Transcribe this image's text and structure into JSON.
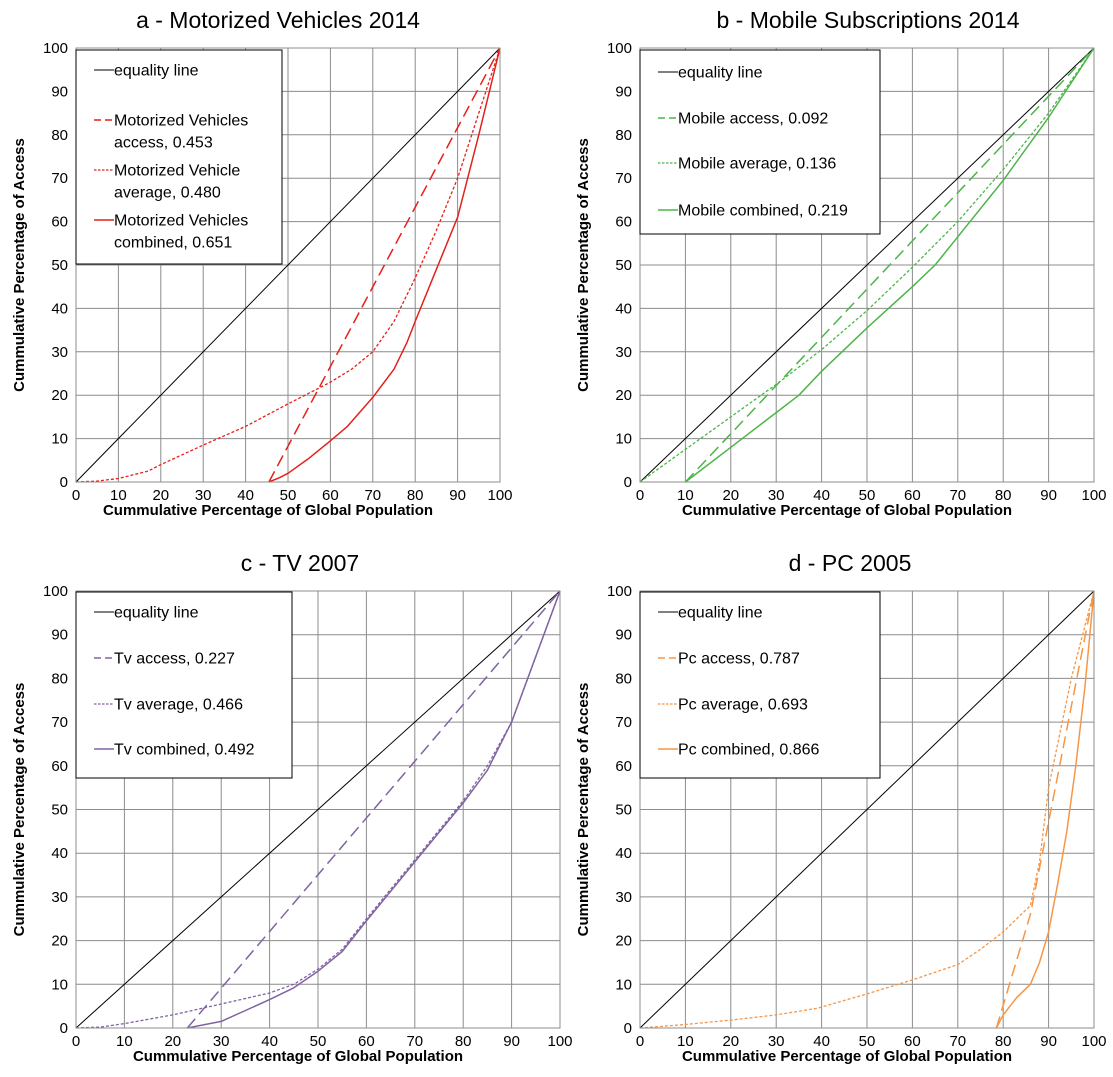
{
  "chart_data": [
    {
      "type": "line",
      "title": "a - Motorized Vehicles 2014",
      "xlabel": "Cummulative Percentage of Global Population",
      "ylabel": "Cummulative Percentage of Access",
      "xlim": [
        0,
        100
      ],
      "ylim": [
        0,
        100
      ],
      "xticks": [
        "0",
        "10",
        "20",
        "30",
        "40",
        "50",
        "60",
        "70",
        "80",
        "90",
        "100"
      ],
      "yticks": [
        "0",
        "10",
        "20",
        "30",
        "40",
        "50",
        "60",
        "70",
        "80",
        "90",
        "100"
      ],
      "grid": true,
      "legend_position": "top-left",
      "series": [
        {
          "name": "equality line",
          "color": "#000000",
          "dash": "solid",
          "x": [
            0,
            100
          ],
          "y": [
            0,
            100
          ]
        },
        {
          "name": "Motorized Vehicles access, 0.453",
          "name_lines": [
            "Motorized Vehicles",
            "access, 0.453"
          ],
          "color": "#e4211c",
          "dash": "long-dash",
          "x": [
            45.5,
            100
          ],
          "y": [
            0,
            100
          ]
        },
        {
          "name": "Motorized Vehicle average, 0.480",
          "name_lines": [
            "Motorized Vehicle",
            "average, 0.480"
          ],
          "color": "#e4211c",
          "dash": "dotted",
          "x": [
            0,
            5,
            10,
            17,
            20,
            30,
            40,
            50,
            60,
            65,
            70,
            75,
            80,
            85,
            90,
            95,
            100
          ],
          "y": [
            0,
            0.2,
            0.8,
            2.5,
            4,
            8.5,
            12.8,
            18,
            23,
            26,
            30,
            37,
            47,
            58,
            70,
            85,
            100
          ]
        },
        {
          "name": "Motorized Vehicles combined, 0.651",
          "name_lines": [
            "Motorized Vehicles",
            "combined, 0.651"
          ],
          "color": "#e4211c",
          "dash": "solid",
          "x": [
            45.5,
            48,
            50,
            55,
            60,
            64,
            70,
            75,
            78,
            80,
            85,
            90,
            95,
            100
          ],
          "y": [
            0,
            1,
            2,
            5.5,
            9.5,
            12.8,
            19.5,
            26,
            32,
            37,
            49,
            61,
            80,
            100
          ]
        }
      ]
    },
    {
      "type": "line",
      "title": "b - Mobile Subscriptions 2014",
      "xlabel": "Cummulative Percentage of Global Population",
      "ylabel": "Cummulative Percentage of Access",
      "xlim": [
        0,
        100
      ],
      "ylim": [
        0,
        100
      ],
      "xticks": [
        "0",
        "10",
        "20",
        "30",
        "40",
        "50",
        "60",
        "70",
        "80",
        "90",
        "100"
      ],
      "yticks": [
        "0",
        "10",
        "20",
        "30",
        "40",
        "50",
        "60",
        "70",
        "80",
        "90",
        "100"
      ],
      "grid": true,
      "legend_position": "top-left",
      "series": [
        {
          "name": "equality line",
          "color": "#000000",
          "dash": "solid",
          "x": [
            0,
            100
          ],
          "y": [
            0,
            100
          ]
        },
        {
          "name": "Mobile access, 0.092",
          "color": "#4cb549",
          "dash": "long-dash",
          "x": [
            10,
            100
          ],
          "y": [
            0,
            100
          ]
        },
        {
          "name": "Mobile average, 0.136",
          "color": "#4cb549",
          "dash": "dotted",
          "x": [
            0,
            10,
            20,
            30,
            40,
            50,
            60,
            70,
            80,
            90,
            100
          ],
          "y": [
            0,
            7.5,
            15,
            22.5,
            30.5,
            39.5,
            49.5,
            60,
            72,
            85,
            100
          ]
        },
        {
          "name": "Mobile combined, 0.219",
          "color": "#4cb549",
          "dash": "solid",
          "x": [
            10,
            20,
            30,
            35,
            40,
            50,
            60,
            65,
            70,
            80,
            90,
            100
          ],
          "y": [
            0,
            8,
            16,
            20,
            25.5,
            35.5,
            45,
            50,
            56.5,
            69.5,
            84,
            100
          ]
        }
      ]
    },
    {
      "type": "line",
      "title": "c - TV 2007",
      "xlabel": "Cummulative Percentage of Global Population",
      "ylabel": "Cummulative Percentage of Access",
      "xlim": [
        0,
        100
      ],
      "ylim": [
        0,
        100
      ],
      "xticks": [
        "0",
        "10",
        "20",
        "30",
        "40",
        "50",
        "60",
        "70",
        "80",
        "90",
        "100"
      ],
      "yticks": [
        "0",
        "10",
        "20",
        "30",
        "40",
        "50",
        "60",
        "70",
        "80",
        "90",
        "100"
      ],
      "grid": true,
      "legend_position": "top-left",
      "series": [
        {
          "name": "equality line",
          "color": "#000000",
          "dash": "solid",
          "x": [
            0,
            100
          ],
          "y": [
            0,
            100
          ]
        },
        {
          "name": "Tv access, 0.227",
          "color": "#8064a2",
          "dash": "long-dash",
          "x": [
            23,
            100
          ],
          "y": [
            0,
            100
          ]
        },
        {
          "name": "Tv average, 0.466",
          "color": "#8064a2",
          "dash": "dotted",
          "x": [
            0,
            5,
            10,
            20,
            30,
            40,
            45,
            50,
            55,
            60,
            70,
            80,
            85,
            90,
            95,
            100
          ],
          "y": [
            0,
            0.2,
            1,
            3,
            5.5,
            8,
            10,
            13.5,
            18,
            25,
            38.5,
            52,
            60,
            70,
            85,
            100
          ]
        },
        {
          "name": "Tv combined, 0.492",
          "color": "#8064a2",
          "dash": "solid",
          "x": [
            23,
            30,
            35,
            40,
            45,
            50,
            55,
            60,
            70,
            80,
            85,
            90,
            95,
            100
          ],
          "y": [
            0,
            1.5,
            4,
            6.5,
            9.2,
            13,
            17.5,
            24.5,
            38,
            51.5,
            59,
            70,
            85,
            100
          ]
        }
      ]
    },
    {
      "type": "line",
      "title": "d - PC 2005",
      "xlabel": "Cummulative Percentage of Global Population",
      "ylabel": "Cummulative Percentage of Access",
      "xlim": [
        0,
        100
      ],
      "ylim": [
        0,
        100
      ],
      "xticks": [
        "0",
        "10",
        "20",
        "30",
        "40",
        "50",
        "60",
        "70",
        "80",
        "90",
        "100"
      ],
      "yticks": [
        "0",
        "10",
        "20",
        "30",
        "40",
        "50",
        "60",
        "70",
        "80",
        "90",
        "100"
      ],
      "grid": true,
      "legend_position": "top-left",
      "series": [
        {
          "name": "equality line",
          "color": "#000000",
          "dash": "solid",
          "x": [
            0,
            100
          ],
          "y": [
            0,
            100
          ]
        },
        {
          "name": "Pc access, 0.787",
          "color": "#f79646",
          "dash": "long-dash",
          "x": [
            78.5,
            86,
            100
          ],
          "y": [
            0,
            26,
            100
          ]
        },
        {
          "name": "Pc average, 0.693",
          "color": "#f79646",
          "dash": "dotted",
          "x": [
            0,
            10,
            20,
            30,
            39,
            50,
            60,
            70,
            75,
            80,
            86,
            88,
            90,
            95,
            100
          ],
          "y": [
            0,
            0.8,
            1.8,
            3,
            4.5,
            7.8,
            11,
            14.5,
            18,
            22,
            28,
            38,
            55,
            80,
            100
          ]
        },
        {
          "name": "Pc combined, 0.866",
          "color": "#f79646",
          "dash": "solid",
          "x": [
            78.5,
            80,
            83,
            86,
            88,
            90,
            92,
            94,
            96,
            98,
            100
          ],
          "y": [
            0,
            3,
            7,
            10,
            15,
            22,
            33,
            45,
            60,
            78,
            100
          ]
        }
      ]
    }
  ]
}
